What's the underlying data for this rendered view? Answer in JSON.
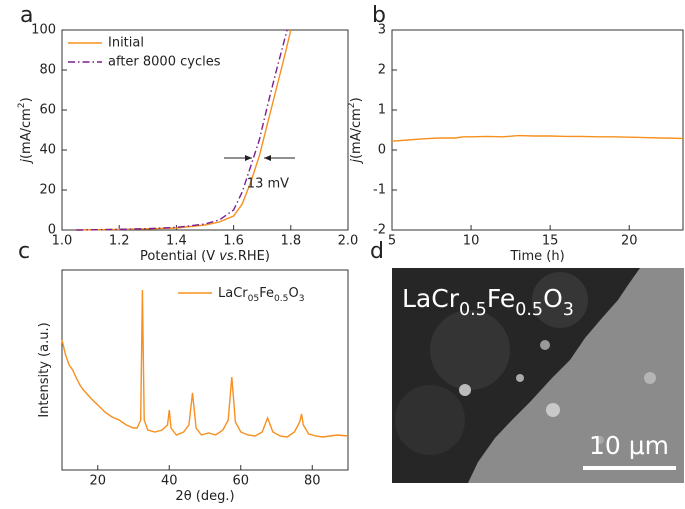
{
  "chart_data": [
    {
      "type": "line",
      "panel_label": "a",
      "x_label": [
        "Potential (V ",
        "vs.",
        "RHE)"
      ],
      "y_label": [
        "j",
        "(mA/cm",
        "2",
        ")"
      ],
      "xlim": [
        1.0,
        2.0
      ],
      "ylim": [
        0,
        100
      ],
      "xticks": [
        {
          "value": 1,
          "label": "1.0"
        },
        1.2,
        1.4,
        1.6,
        1.8,
        {
          "value": 2,
          "label": "2.0"
        }
      ],
      "yticks": [
        0,
        20,
        40,
        60,
        80,
        100
      ],
      "annotation": "13 mV",
      "series": [
        {
          "name": "Initial",
          "color": "#f7901e",
          "dash": "solid",
          "x": [
            1.05,
            1.2,
            1.3,
            1.4,
            1.5,
            1.55,
            1.6,
            1.63,
            1.66,
            1.69,
            1.72,
            1.75,
            1.78,
            1.8
          ],
          "values": [
            0,
            0.3,
            0.6,
            1,
            2.5,
            4,
            7,
            13,
            24,
            37,
            54,
            71,
            88,
            100
          ]
        },
        {
          "name": "after 8000 cycles",
          "color": "#7a1f8f",
          "dash": "dashdot",
          "x": [
            1.05,
            1.2,
            1.3,
            1.4,
            1.5,
            1.55,
            1.6,
            1.63,
            1.66,
            1.69,
            1.72,
            1.75,
            1.787
          ],
          "values": [
            0,
            0.3,
            0.7,
            1.3,
            3,
            5,
            10,
            19,
            32,
            45,
            63,
            80,
            100
          ]
        }
      ]
    },
    {
      "type": "line",
      "panel_label": "b",
      "x_label": [
        "Time (h)"
      ],
      "y_label": [
        "j",
        "(mA/cm",
        "2",
        ")"
      ],
      "xlim": [
        5,
        23.4
      ],
      "ylim": [
        -2,
        3
      ],
      "xticks": [
        5,
        10,
        15,
        20
      ],
      "yticks": [
        -2,
        -1,
        0,
        1,
        2,
        3
      ],
      "series": [
        {
          "color": "#f7901e",
          "dash": "solid",
          "x": [
            5,
            6,
            7,
            8,
            9,
            9.5,
            10,
            11,
            12,
            13,
            14,
            15,
            16,
            17,
            18,
            19,
            20,
            21,
            22,
            23.4
          ],
          "values": [
            0.22,
            0.25,
            0.28,
            0.3,
            0.3,
            0.33,
            0.33,
            0.34,
            0.33,
            0.36,
            0.35,
            0.35,
            0.34,
            0.34,
            0.33,
            0.33,
            0.32,
            0.31,
            0.3,
            0.29
          ]
        }
      ]
    },
    {
      "type": "line",
      "panel_label": "c",
      "x_label": [
        "2θ (deg.)"
      ],
      "y_label": [
        "Intensity (a.u.)"
      ],
      "xlim": [
        10,
        90
      ],
      "ylim": [
        0,
        100
      ],
      "xticks": [
        20,
        40,
        60,
        80
      ],
      "series": [
        {
          "name": [
            "LaCr",
            "05",
            "Fe",
            "0.5",
            "O",
            "3"
          ],
          "color": "#f7901e",
          "dash": "solid",
          "x": [
            10,
            11,
            12,
            13,
            14,
            15,
            16,
            18,
            20,
            22,
            24,
            26,
            28,
            30,
            31,
            32,
            32.5,
            33,
            34,
            36,
            38,
            39.5,
            40,
            40.5,
            42,
            44,
            45.5,
            46.5,
            47.5,
            49,
            51,
            53,
            55,
            56.5,
            57.5,
            58.5,
            60,
            62,
            64,
            66,
            67.5,
            69,
            71,
            73,
            75,
            76.5,
            77,
            77.5,
            79,
            81,
            83,
            85,
            87,
            90
          ],
          "values": [
            65,
            57.5,
            52.5,
            50,
            46,
            42.5,
            40,
            36,
            32.5,
            29,
            26.5,
            25,
            22.5,
            21,
            21,
            25,
            90,
            25,
            20,
            19,
            20,
            22.5,
            30,
            21,
            17.5,
            19,
            22.5,
            38.5,
            21,
            17.5,
            18.5,
            17.5,
            20,
            25,
            46.5,
            24,
            19,
            17.5,
            17,
            19,
            26,
            19,
            17,
            16.5,
            19,
            24,
            28,
            22.5,
            18,
            17,
            16.5,
            17,
            17.5,
            17
          ]
        }
      ]
    },
    {
      "type": "image",
      "panel_label": "d",
      "caption": [
        "LaCr",
        "0.5",
        "Fe",
        "0.5",
        "O",
        "3"
      ],
      "scale_bar": "10 μm"
    }
  ]
}
